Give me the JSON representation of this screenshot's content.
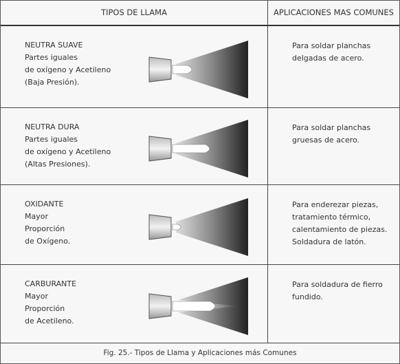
{
  "header": {
    "col1": "TIPOS DE LLAMA",
    "col2": "APLICACIONES MAS COMUNES"
  },
  "rows": [
    {
      "name": "NEUTRA SUAVE",
      "description": [
        "Partes iguales",
        "de oxígeno y Acetileno",
        "(Baja Presión)."
      ],
      "applications": [
        "Para soldar planchas",
        "delgadas de acero."
      ]
    },
    {
      "name": "NEUTRA DURA",
      "description": [
        "Partes iguales",
        "de oxígeno y Acetileno",
        "(Altas Presiones)."
      ],
      "applications": [
        "Para soldar planchas",
        "gruesas de acero."
      ]
    },
    {
      "name": "OXIDANTE",
      "description": [
        "Mayor",
        "Proporción",
        "de Oxígeno."
      ],
      "applications": [
        "Para enderezar piezas,",
        "tratamiento térmico,",
        "calentamiento de piezas.",
        "Soldadura de latón."
      ]
    },
    {
      "name": "CARBURANTE",
      "description": [
        "Mayor",
        "Proporción",
        "de Acetileno."
      ],
      "applications": [
        "Para soldadura de fierro",
        "fundido."
      ]
    }
  ],
  "caption": "Fig. 25.- Tipos de Llama y Aplicaciones más Comunes"
}
